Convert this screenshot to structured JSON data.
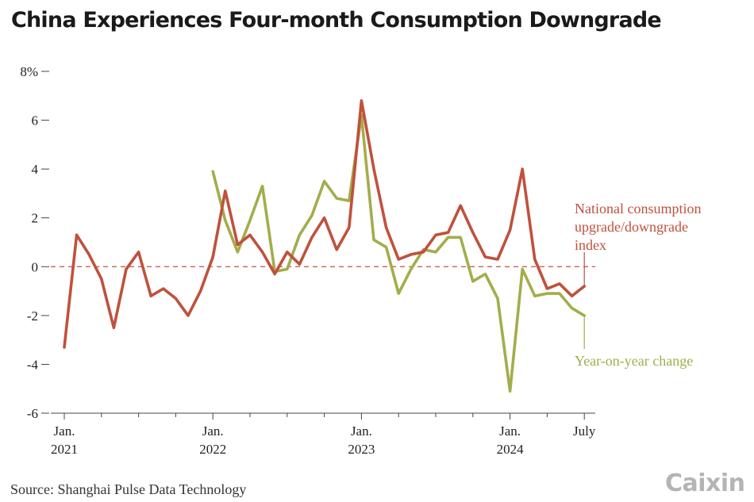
{
  "chart_data": {
    "type": "line",
    "title": "China Experiences Four-month Consumption Downgrade",
    "source": "Source: Shanghai Pulse Data Technology",
    "ylim": [
      -6,
      8
    ],
    "y_ticks": [
      {
        "value": 8,
        "label": "8%"
      },
      {
        "value": 6,
        "label": "6"
      },
      {
        "value": 4,
        "label": "4"
      },
      {
        "value": 2,
        "label": "2"
      },
      {
        "value": 0,
        "label": "0"
      },
      {
        "value": -2,
        "label": "-2"
      },
      {
        "value": -4,
        "label": "-4"
      },
      {
        "value": -6,
        "label": "-6"
      }
    ],
    "x_ticks": [
      {
        "index": 0,
        "line1": "Jan.",
        "line2": "2021"
      },
      {
        "index": 12,
        "line1": "Jan.",
        "line2": "2022"
      },
      {
        "index": 24,
        "line1": "Jan.",
        "line2": "2023"
      },
      {
        "index": 36,
        "line1": "Jan.",
        "line2": "2024"
      },
      {
        "index": 42,
        "line1": "July",
        "line2": ""
      }
    ],
    "reference_line": 0,
    "series": [
      {
        "name": "National consumption upgrade/downgrade index",
        "label_lines": [
          "National consumption",
          "upgrade/downgrade",
          "index"
        ],
        "color": "#c0513c",
        "start_index": 0,
        "values": [
          -3.3,
          1.3,
          0.5,
          -0.5,
          -2.5,
          -0.1,
          0.6,
          -1.2,
          -0.9,
          -1.3,
          -2.0,
          -1.0,
          0.4,
          3.1,
          0.9,
          1.3,
          0.6,
          -0.3,
          0.6,
          0.1,
          1.2,
          2.0,
          0.7,
          1.6,
          6.8,
          4.0,
          1.6,
          0.3,
          0.5,
          0.6,
          1.3,
          1.4,
          2.5,
          1.4,
          0.4,
          0.3,
          1.5,
          4.0,
          0.3,
          -0.9,
          -0.7,
          -1.2,
          -0.8
        ]
      },
      {
        "name": "Year-on-year change",
        "label_lines": [
          "Year-on-year change"
        ],
        "color": "#a3ad4b",
        "start_index": 12,
        "values": [
          3.9,
          1.9,
          0.6,
          1.9,
          3.3,
          -0.2,
          -0.1,
          1.3,
          2.1,
          3.5,
          2.8,
          2.7,
          6.2,
          1.1,
          0.8,
          -1.1,
          -0.1,
          0.7,
          0.6,
          1.2,
          1.2,
          -0.6,
          -0.3,
          -1.3,
          -5.1,
          -0.1,
          -1.2,
          -1.1,
          -1.1,
          -1.7,
          -2.0
        ]
      }
    ]
  }
}
